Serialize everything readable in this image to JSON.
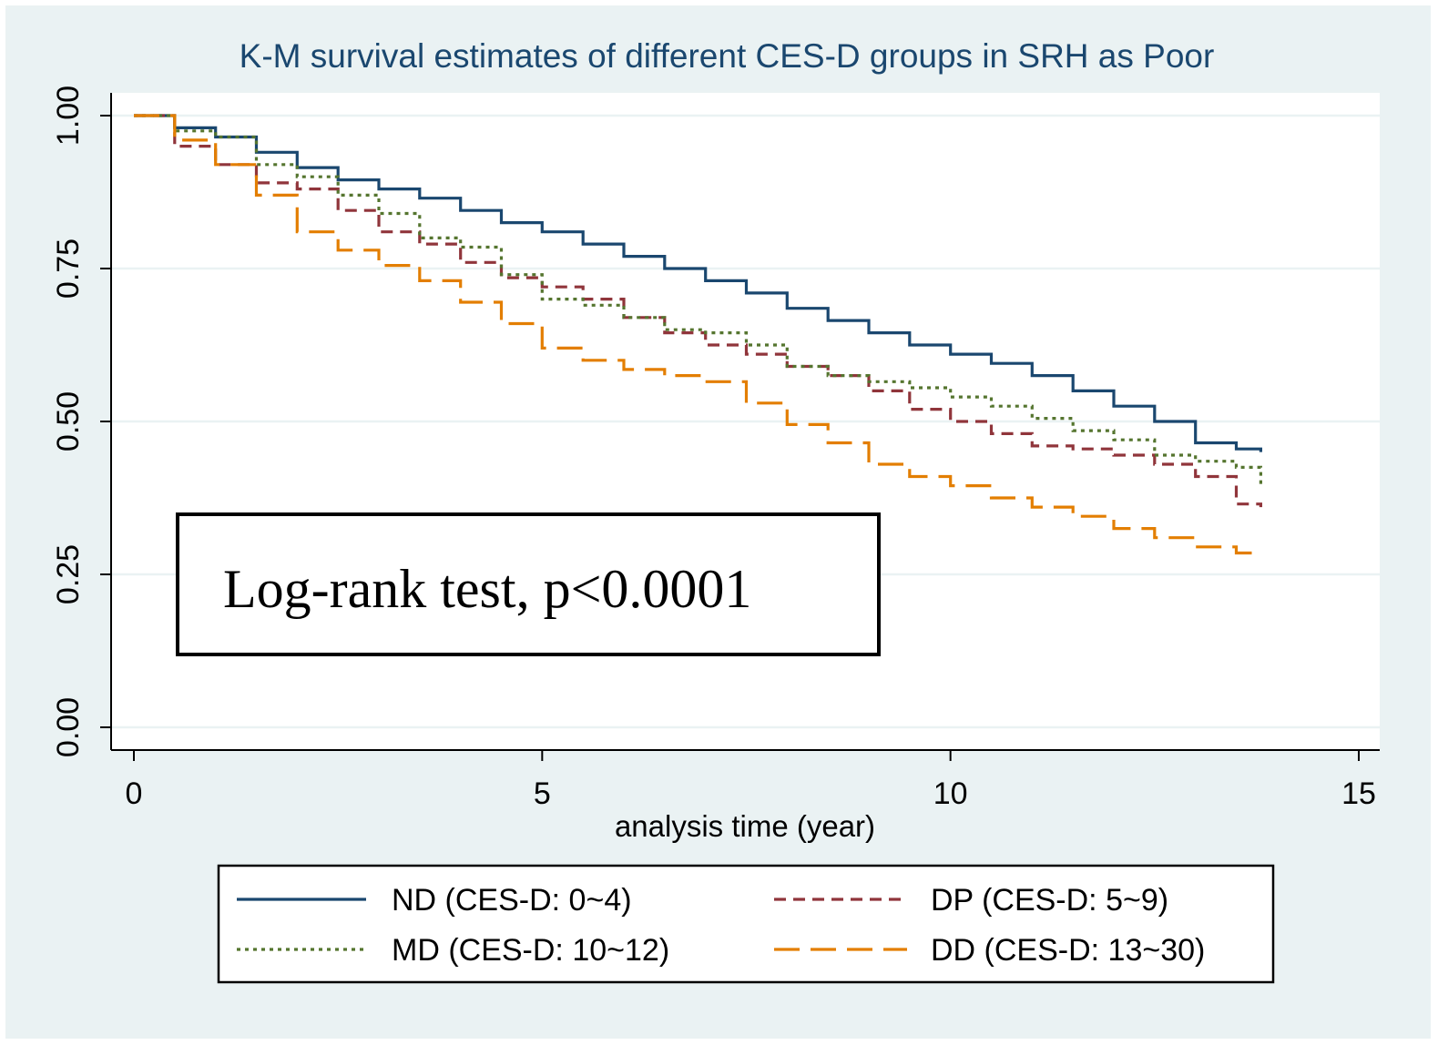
{
  "chart_data": {
    "type": "line",
    "title": "K-M survival estimates of different CES-D groups in SRH as Poor",
    "xlabel": "analysis time (year)",
    "ylabel": "",
    "xlim": [
      0,
      15
    ],
    "ylim": [
      0,
      1
    ],
    "xticks": [
      0,
      5,
      10,
      15
    ],
    "yticks": [
      0.0,
      0.25,
      0.5,
      0.75,
      1.0
    ],
    "xtick_labels": [
      "0",
      "5",
      "10",
      "15"
    ],
    "ytick_labels": [
      "0.00",
      "0.25",
      "0.50",
      "0.75",
      "1.00"
    ],
    "grid": true,
    "legend_position": "bottom",
    "annotation": "Log-rank test, p<0.0001",
    "series": [
      {
        "name": "ND (CES-D: 0~4)",
        "color": "#1a476f",
        "dash": "solid",
        "x": [
          0,
          0.5,
          1.0,
          1.5,
          2.0,
          2.5,
          3.0,
          3.5,
          4.0,
          4.5,
          5.0,
          5.5,
          6.0,
          6.5,
          7.0,
          7.5,
          8.0,
          8.5,
          9.0,
          9.5,
          10.0,
          10.5,
          11.0,
          11.5,
          12.0,
          12.5,
          13.0,
          13.5,
          13.8
        ],
        "y": [
          1.0,
          0.98,
          0.965,
          0.94,
          0.915,
          0.895,
          0.88,
          0.865,
          0.845,
          0.825,
          0.81,
          0.79,
          0.77,
          0.75,
          0.73,
          0.71,
          0.685,
          0.665,
          0.645,
          0.625,
          0.61,
          0.595,
          0.575,
          0.55,
          0.525,
          0.5,
          0.465,
          0.455,
          0.45
        ]
      },
      {
        "name": "DP (CES-D: 5~9)",
        "color": "#90353b",
        "dash": "dashed",
        "x": [
          0,
          0.5,
          1.0,
          1.5,
          2.0,
          2.5,
          3.0,
          3.5,
          4.0,
          4.5,
          5.0,
          5.5,
          6.0,
          6.5,
          7.0,
          7.5,
          8.0,
          8.5,
          9.0,
          9.5,
          10.0,
          10.5,
          11.0,
          11.5,
          12.0,
          12.5,
          13.0,
          13.5,
          13.8
        ],
        "y": [
          1.0,
          0.95,
          0.92,
          0.89,
          0.88,
          0.845,
          0.81,
          0.79,
          0.76,
          0.735,
          0.72,
          0.7,
          0.67,
          0.645,
          0.625,
          0.61,
          0.59,
          0.575,
          0.55,
          0.52,
          0.5,
          0.48,
          0.46,
          0.455,
          0.445,
          0.43,
          0.41,
          0.365,
          0.36
        ]
      },
      {
        "name": "MD (CES-D: 10~12)",
        "color": "#55752f",
        "dash": "dotted",
        "x": [
          0,
          0.5,
          1.0,
          1.5,
          2.0,
          2.5,
          3.0,
          3.5,
          4.0,
          4.5,
          5.0,
          5.5,
          6.0,
          6.5,
          7.0,
          7.5,
          8.0,
          8.5,
          9.0,
          9.5,
          10.0,
          10.5,
          11.0,
          11.5,
          12.0,
          12.5,
          13.0,
          13.5,
          13.8
        ],
        "y": [
          1.0,
          0.975,
          0.965,
          0.92,
          0.9,
          0.87,
          0.84,
          0.8,
          0.785,
          0.74,
          0.7,
          0.69,
          0.67,
          0.65,
          0.645,
          0.625,
          0.59,
          0.575,
          0.565,
          0.555,
          0.54,
          0.525,
          0.505,
          0.485,
          0.47,
          0.445,
          0.435,
          0.425,
          0.395
        ]
      },
      {
        "name": "DD (CES-D: 13~30)",
        "color": "#e37e00",
        "dash": "longdash",
        "x": [
          0,
          0.5,
          1.0,
          1.5,
          2.0,
          2.5,
          3.0,
          3.5,
          4.0,
          4.5,
          5.0,
          5.5,
          6.0,
          6.5,
          7.0,
          7.5,
          8.0,
          8.5,
          9.0,
          9.5,
          10.0,
          10.5,
          11.0,
          11.5,
          12.0,
          12.5,
          13.0,
          13.5,
          13.8
        ],
        "y": [
          1.0,
          0.96,
          0.92,
          0.87,
          0.81,
          0.78,
          0.755,
          0.73,
          0.695,
          0.66,
          0.62,
          0.6,
          0.585,
          0.575,
          0.565,
          0.53,
          0.495,
          0.465,
          0.43,
          0.41,
          0.395,
          0.375,
          0.36,
          0.345,
          0.325,
          0.31,
          0.295,
          0.285,
          0.285
        ]
      }
    ]
  }
}
